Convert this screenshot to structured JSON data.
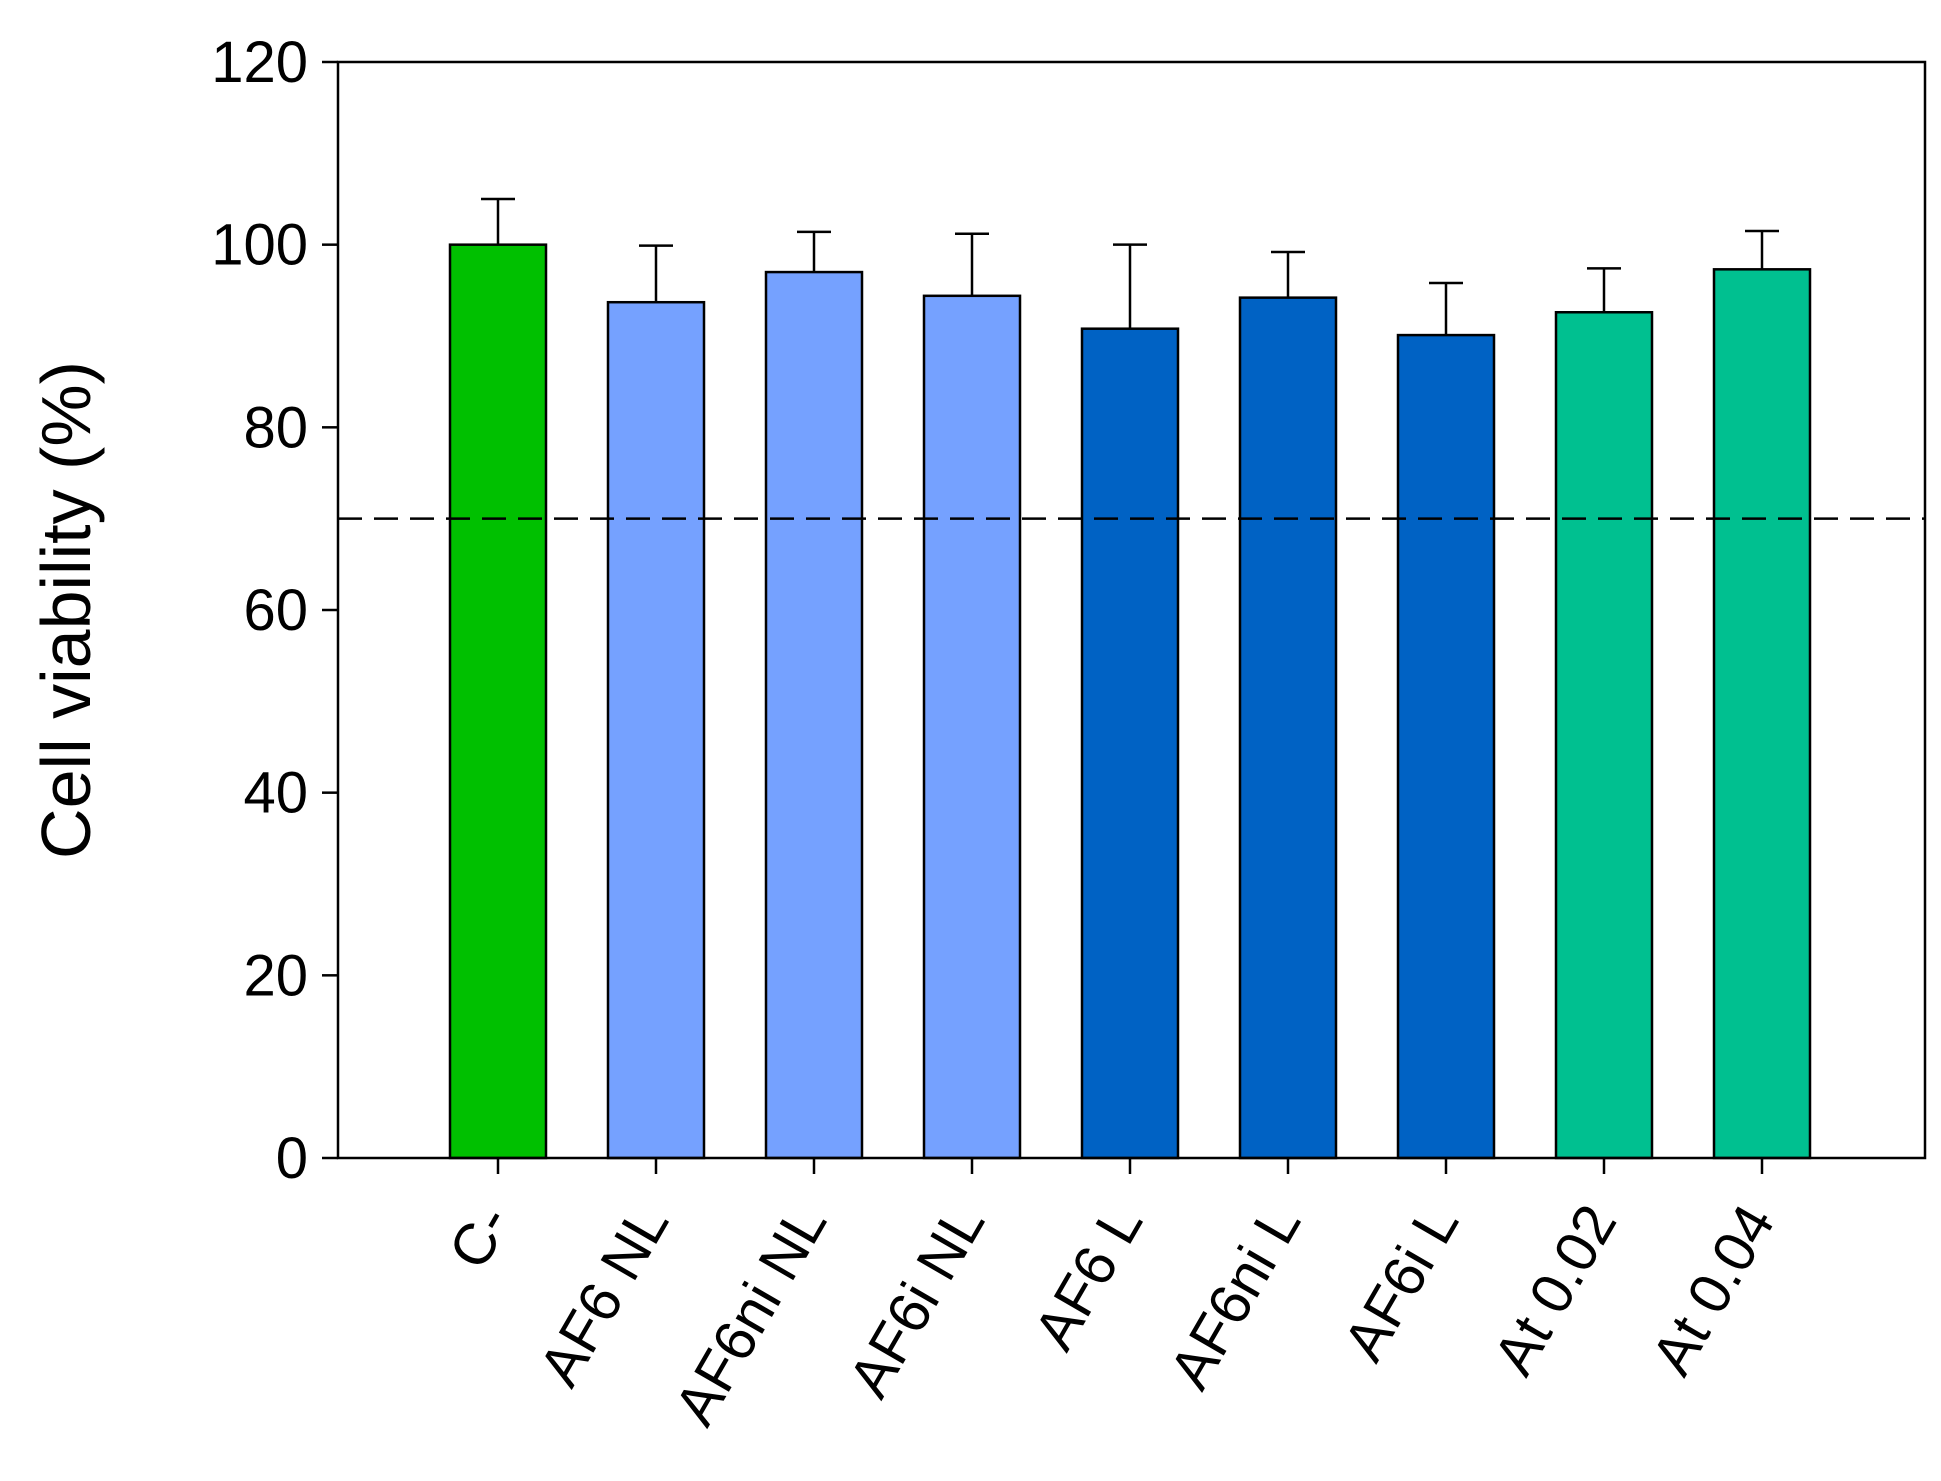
{
  "chart_data": {
    "type": "bar",
    "title": "",
    "xlabel": "",
    "ylabel": "Cell viability (%)",
    "ylim": [
      0,
      120
    ],
    "yticks": [
      0,
      20,
      40,
      60,
      80,
      100,
      120
    ],
    "grid": false,
    "legend": "none",
    "categories": [
      "C-",
      "AF6 NL",
      "AF6ni NL",
      "AF6i NL",
      "AF6 L",
      "AF6ni L",
      "AF6i L",
      "At 0.02",
      "At 0.04"
    ],
    "values": [
      100,
      93.7,
      97.0,
      94.4,
      90.8,
      94.2,
      90.1,
      92.6,
      97.3
    ],
    "errors": [
      5.0,
      6.2,
      4.4,
      6.8,
      9.2,
      5.0,
      5.7,
      4.8,
      4.2
    ],
    "colors": [
      "#00c000",
      "#75a1ff",
      "#75a1ff",
      "#75a1ff",
      "#0062c4",
      "#0062c4",
      "#0062c4",
      "#00c090",
      "#00c090"
    ],
    "reference_line": {
      "y": 70,
      "style": "dashed"
    }
  }
}
